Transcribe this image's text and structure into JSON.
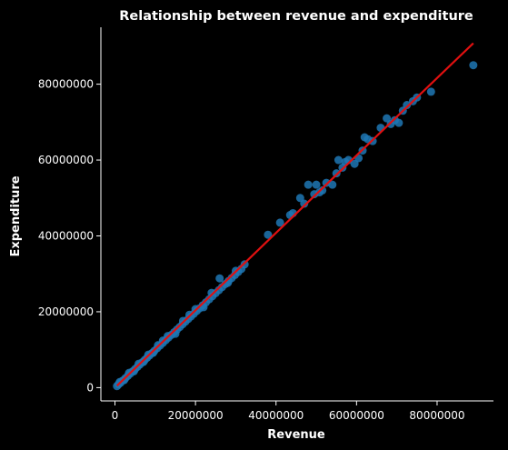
{
  "chart_data": {
    "type": "scatter",
    "title": "Relationship between revenue and expenditure",
    "xlabel": "Revenue",
    "ylabel": "Expenditure",
    "xlim": [
      -3500000,
      94000000
    ],
    "ylim": [
      -3500000,
      95000000
    ],
    "x_ticks": [
      0,
      20000000,
      40000000,
      60000000,
      80000000
    ],
    "x_tick_labels": [
      "0",
      "20000000",
      "40000000",
      "60000000",
      "80000000"
    ],
    "y_ticks": [
      0,
      20000000,
      40000000,
      60000000,
      80000000
    ],
    "y_tick_labels": [
      "0",
      "20000000",
      "40000000",
      "60000000",
      "80000000"
    ],
    "grid": false,
    "colors": {
      "background": "#000000",
      "axes": "#ffffff",
      "text": "#ffffff",
      "points": "#1f77b4",
      "regression_line": "#e01010"
    },
    "series": [
      {
        "kind": "points",
        "x": [
          500000,
          900000,
          1400000,
          2000000,
          2600000,
          3200000,
          3800000,
          4400000,
          5000000,
          5600000,
          6200000,
          6800000,
          7400000,
          8000000,
          8600000,
          9200000,
          9800000,
          10500000,
          11200000,
          11900000,
          12600000,
          13300000,
          14000000,
          14700000,
          15400000,
          16100000,
          16800000,
          17500000,
          18200000,
          18900000,
          19600000,
          20300000,
          21000000,
          21800000,
          22600000,
          23400000,
          24200000,
          25000000,
          25800000,
          26600000,
          27400000,
          28200000,
          29000000,
          29800000,
          30600000,
          31400000,
          32200000,
          1200000,
          2300000,
          3500000,
          4700000,
          5900000,
          7100000,
          8300000,
          9500000,
          10700000,
          11900000,
          13100000,
          15000000,
          16900000,
          18500000,
          20000000,
          22000000,
          24000000,
          26000000,
          28000000,
          30000000,
          38000000,
          41000000,
          43500000,
          44200000,
          46000000,
          47000000,
          48000000,
          49500000,
          50000000,
          50800000,
          51500000,
          52500000,
          54000000,
          55000000,
          55500000,
          56500000,
          57200000,
          58000000,
          59500000,
          60500000,
          61500000,
          62000000,
          62800000,
          64000000,
          66000000,
          67500000,
          68500000,
          69500000,
          70500000,
          71500000,
          72500000,
          74000000,
          75000000,
          78500000,
          89000000
        ],
        "y": [
          400000,
          900000,
          1300000,
          1900000,
          2500000,
          3100000,
          3700000,
          4300000,
          4900000,
          5500000,
          6100000,
          6700000,
          7300000,
          7900000,
          8500000,
          9100000,
          9700000,
          10400000,
          11100000,
          11800000,
          12500000,
          13200000,
          13900000,
          14600000,
          15300000,
          16000000,
          16700000,
          17400000,
          18100000,
          18800000,
          19500000,
          20200000,
          20900000,
          21700000,
          22500000,
          23300000,
          24100000,
          24900000,
          25700000,
          26500000,
          27300000,
          28100000,
          28900000,
          29700000,
          30500000,
          31300000,
          32500000,
          1500000,
          2000000,
          3900000,
          4300000,
          6300000,
          6800000,
          8700000,
          9200000,
          11200000,
          12400000,
          13600000,
          14200000,
          17600000,
          19200000,
          20700000,
          21200000,
          25000000,
          28800000,
          27600000,
          30800000,
          40300000,
          43500000,
          45500000,
          46000000,
          50000000,
          48500000,
          53500000,
          51000000,
          53500000,
          51500000,
          52000000,
          54000000,
          53500000,
          56500000,
          60000000,
          58000000,
          59500000,
          60000000,
          59000000,
          60500000,
          62500000,
          66000000,
          65500000,
          65000000,
          68500000,
          71000000,
          69500000,
          70500000,
          69800000,
          73000000,
          74500000,
          75500000,
          76500000,
          78000000,
          85000000
        ]
      },
      {
        "kind": "regression_line",
        "x": [
          500000,
          89000000
        ],
        "y": [
          500000,
          90800000
        ]
      }
    ]
  }
}
